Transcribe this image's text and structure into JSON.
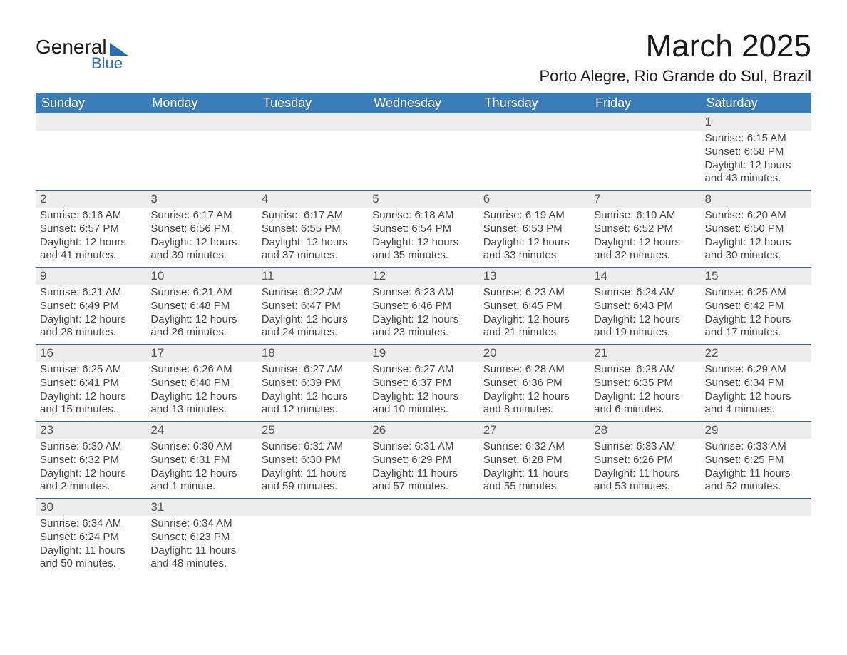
{
  "logo": {
    "general": "General",
    "blue": "Blue"
  },
  "header": {
    "title": "March 2025",
    "location": "Porto Alegre, Rio Grande do Sul, Brazil"
  },
  "colors": {
    "header_bg": "#3a7cb8",
    "header_text": "#ffffff",
    "daynum_bg": "#ededed",
    "border": "#2a6db0",
    "body_text": "#444444",
    "logo_blue": "#2a6db0"
  },
  "weekdays": [
    "Sunday",
    "Monday",
    "Tuesday",
    "Wednesday",
    "Thursday",
    "Friday",
    "Saturday"
  ],
  "weeks": [
    [
      {
        "day": "",
        "sunrise": "",
        "sunset": "",
        "daylight": ""
      },
      {
        "day": "",
        "sunrise": "",
        "sunset": "",
        "daylight": ""
      },
      {
        "day": "",
        "sunrise": "",
        "sunset": "",
        "daylight": ""
      },
      {
        "day": "",
        "sunrise": "",
        "sunset": "",
        "daylight": ""
      },
      {
        "day": "",
        "sunrise": "",
        "sunset": "",
        "daylight": ""
      },
      {
        "day": "",
        "sunrise": "",
        "sunset": "",
        "daylight": ""
      },
      {
        "day": "1",
        "sunrise": "Sunrise: 6:15 AM",
        "sunset": "Sunset: 6:58 PM",
        "daylight": "Daylight: 12 hours and 43 minutes."
      }
    ],
    [
      {
        "day": "2",
        "sunrise": "Sunrise: 6:16 AM",
        "sunset": "Sunset: 6:57 PM",
        "daylight": "Daylight: 12 hours and 41 minutes."
      },
      {
        "day": "3",
        "sunrise": "Sunrise: 6:17 AM",
        "sunset": "Sunset: 6:56 PM",
        "daylight": "Daylight: 12 hours and 39 minutes."
      },
      {
        "day": "4",
        "sunrise": "Sunrise: 6:17 AM",
        "sunset": "Sunset: 6:55 PM",
        "daylight": "Daylight: 12 hours and 37 minutes."
      },
      {
        "day": "5",
        "sunrise": "Sunrise: 6:18 AM",
        "sunset": "Sunset: 6:54 PM",
        "daylight": "Daylight: 12 hours and 35 minutes."
      },
      {
        "day": "6",
        "sunrise": "Sunrise: 6:19 AM",
        "sunset": "Sunset: 6:53 PM",
        "daylight": "Daylight: 12 hours and 33 minutes."
      },
      {
        "day": "7",
        "sunrise": "Sunrise: 6:19 AM",
        "sunset": "Sunset: 6:52 PM",
        "daylight": "Daylight: 12 hours and 32 minutes."
      },
      {
        "day": "8",
        "sunrise": "Sunrise: 6:20 AM",
        "sunset": "Sunset: 6:50 PM",
        "daylight": "Daylight: 12 hours and 30 minutes."
      }
    ],
    [
      {
        "day": "9",
        "sunrise": "Sunrise: 6:21 AM",
        "sunset": "Sunset: 6:49 PM",
        "daylight": "Daylight: 12 hours and 28 minutes."
      },
      {
        "day": "10",
        "sunrise": "Sunrise: 6:21 AM",
        "sunset": "Sunset: 6:48 PM",
        "daylight": "Daylight: 12 hours and 26 minutes."
      },
      {
        "day": "11",
        "sunrise": "Sunrise: 6:22 AM",
        "sunset": "Sunset: 6:47 PM",
        "daylight": "Daylight: 12 hours and 24 minutes."
      },
      {
        "day": "12",
        "sunrise": "Sunrise: 6:23 AM",
        "sunset": "Sunset: 6:46 PM",
        "daylight": "Daylight: 12 hours and 23 minutes."
      },
      {
        "day": "13",
        "sunrise": "Sunrise: 6:23 AM",
        "sunset": "Sunset: 6:45 PM",
        "daylight": "Daylight: 12 hours and 21 minutes."
      },
      {
        "day": "14",
        "sunrise": "Sunrise: 6:24 AM",
        "sunset": "Sunset: 6:43 PM",
        "daylight": "Daylight: 12 hours and 19 minutes."
      },
      {
        "day": "15",
        "sunrise": "Sunrise: 6:25 AM",
        "sunset": "Sunset: 6:42 PM",
        "daylight": "Daylight: 12 hours and 17 minutes."
      }
    ],
    [
      {
        "day": "16",
        "sunrise": "Sunrise: 6:25 AM",
        "sunset": "Sunset: 6:41 PM",
        "daylight": "Daylight: 12 hours and 15 minutes."
      },
      {
        "day": "17",
        "sunrise": "Sunrise: 6:26 AM",
        "sunset": "Sunset: 6:40 PM",
        "daylight": "Daylight: 12 hours and 13 minutes."
      },
      {
        "day": "18",
        "sunrise": "Sunrise: 6:27 AM",
        "sunset": "Sunset: 6:39 PM",
        "daylight": "Daylight: 12 hours and 12 minutes."
      },
      {
        "day": "19",
        "sunrise": "Sunrise: 6:27 AM",
        "sunset": "Sunset: 6:37 PM",
        "daylight": "Daylight: 12 hours and 10 minutes."
      },
      {
        "day": "20",
        "sunrise": "Sunrise: 6:28 AM",
        "sunset": "Sunset: 6:36 PM",
        "daylight": "Daylight: 12 hours and 8 minutes."
      },
      {
        "day": "21",
        "sunrise": "Sunrise: 6:28 AM",
        "sunset": "Sunset: 6:35 PM",
        "daylight": "Daylight: 12 hours and 6 minutes."
      },
      {
        "day": "22",
        "sunrise": "Sunrise: 6:29 AM",
        "sunset": "Sunset: 6:34 PM",
        "daylight": "Daylight: 12 hours and 4 minutes."
      }
    ],
    [
      {
        "day": "23",
        "sunrise": "Sunrise: 6:30 AM",
        "sunset": "Sunset: 6:32 PM",
        "daylight": "Daylight: 12 hours and 2 minutes."
      },
      {
        "day": "24",
        "sunrise": "Sunrise: 6:30 AM",
        "sunset": "Sunset: 6:31 PM",
        "daylight": "Daylight: 12 hours and 1 minute."
      },
      {
        "day": "25",
        "sunrise": "Sunrise: 6:31 AM",
        "sunset": "Sunset: 6:30 PM",
        "daylight": "Daylight: 11 hours and 59 minutes."
      },
      {
        "day": "26",
        "sunrise": "Sunrise: 6:31 AM",
        "sunset": "Sunset: 6:29 PM",
        "daylight": "Daylight: 11 hours and 57 minutes."
      },
      {
        "day": "27",
        "sunrise": "Sunrise: 6:32 AM",
        "sunset": "Sunset: 6:28 PM",
        "daylight": "Daylight: 11 hours and 55 minutes."
      },
      {
        "day": "28",
        "sunrise": "Sunrise: 6:33 AM",
        "sunset": "Sunset: 6:26 PM",
        "daylight": "Daylight: 11 hours and 53 minutes."
      },
      {
        "day": "29",
        "sunrise": "Sunrise: 6:33 AM",
        "sunset": "Sunset: 6:25 PM",
        "daylight": "Daylight: 11 hours and 52 minutes."
      }
    ],
    [
      {
        "day": "30",
        "sunrise": "Sunrise: 6:34 AM",
        "sunset": "Sunset: 6:24 PM",
        "daylight": "Daylight: 11 hours and 50 minutes."
      },
      {
        "day": "31",
        "sunrise": "Sunrise: 6:34 AM",
        "sunset": "Sunset: 6:23 PM",
        "daylight": "Daylight: 11 hours and 48 minutes."
      },
      {
        "day": "",
        "sunrise": "",
        "sunset": "",
        "daylight": ""
      },
      {
        "day": "",
        "sunrise": "",
        "sunset": "",
        "daylight": ""
      },
      {
        "day": "",
        "sunrise": "",
        "sunset": "",
        "daylight": ""
      },
      {
        "day": "",
        "sunrise": "",
        "sunset": "",
        "daylight": ""
      },
      {
        "day": "",
        "sunrise": "",
        "sunset": "",
        "daylight": ""
      }
    ]
  ]
}
